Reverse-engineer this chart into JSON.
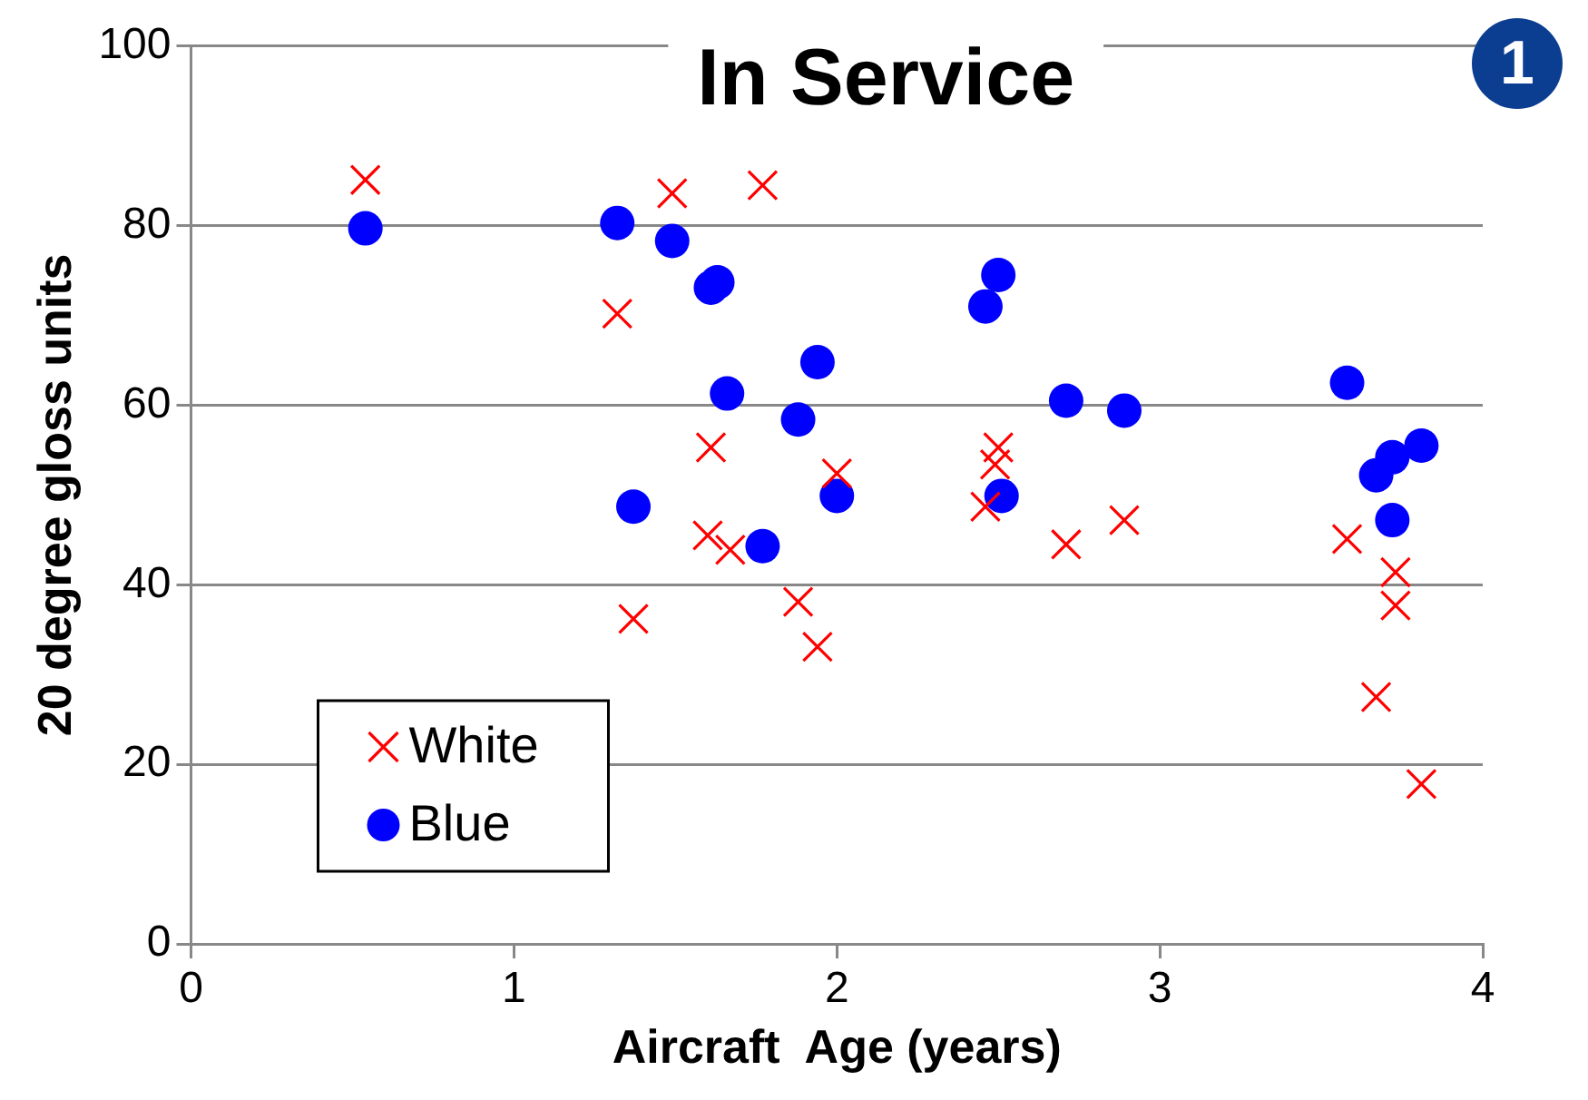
{
  "chart_data": {
    "type": "scatter",
    "title": "In Service",
    "xlabel": "Aircraft  Age (years)",
    "ylabel": "20 degree gloss units",
    "annotations": [
      "1"
    ],
    "xlim": [
      0,
      4
    ],
    "xticks": [
      0,
      1,
      2,
      3,
      4
    ],
    "ylim": [
      0,
      100
    ],
    "yticks": [
      0,
      20,
      40,
      60,
      80,
      100
    ],
    "grid": "y",
    "legend": "bottom left",
    "series": [
      {
        "name": "White",
        "color": "#ff0000",
        "marker": "cross",
        "x": [
          0.54,
          1.49,
          1.77,
          1.32,
          1.61,
          2.0,
          1.6,
          1.67,
          1.37,
          1.88,
          1.94,
          2.5,
          2.49,
          2.46,
          2.71,
          2.89,
          3.58,
          3.73,
          3.73,
          3.67,
          3.81
        ],
        "values": [
          85.1,
          83.6,
          84.5,
          70.2,
          55.3,
          52.4,
          45.5,
          43.9,
          36.2,
          38.1,
          33.1,
          55.3,
          53.4,
          48.7,
          44.5,
          47.2,
          45.1,
          41.4,
          37.7,
          27.5,
          17.8
        ]
      },
      {
        "name": "Blue",
        "color": "#0000ff",
        "marker": "circle",
        "x": [
          0.54,
          1.32,
          1.49,
          1.61,
          1.63,
          1.94,
          1.66,
          1.88,
          1.37,
          2.0,
          1.77,
          2.5,
          2.46,
          2.71,
          2.89,
          2.51,
          3.58,
          3.67,
          3.72,
          3.81,
          3.72
        ],
        "values": [
          79.7,
          80.3,
          78.3,
          73.1,
          73.7,
          64.8,
          61.3,
          58.4,
          48.7,
          49.9,
          44.3,
          74.5,
          71.0,
          60.5,
          59.4,
          49.9,
          62.5,
          52.2,
          54.2,
          55.5,
          47.2
        ]
      }
    ]
  }
}
